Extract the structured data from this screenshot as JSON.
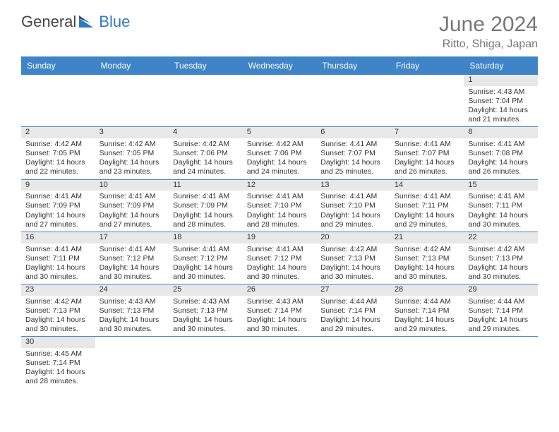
{
  "logo": {
    "text1": "General",
    "text2": "Blue"
  },
  "title": {
    "month": "June 2024",
    "location": "Ritto, Shiga, Japan"
  },
  "colors": {
    "header_bg": "#3e84c6",
    "header_text": "#ffffff",
    "rule": "#3e84c6",
    "daynum_bg": "#e8e8e8",
    "text": "#333333",
    "title_text": "#777777",
    "logo_blue": "#3078c0"
  },
  "days_of_week": [
    "Sunday",
    "Monday",
    "Tuesday",
    "Wednesday",
    "Thursday",
    "Friday",
    "Saturday"
  ],
  "cells": [
    {
      "n": "",
      "sr": "",
      "ss": "",
      "dl": ""
    },
    {
      "n": "",
      "sr": "",
      "ss": "",
      "dl": ""
    },
    {
      "n": "",
      "sr": "",
      "ss": "",
      "dl": ""
    },
    {
      "n": "",
      "sr": "",
      "ss": "",
      "dl": ""
    },
    {
      "n": "",
      "sr": "",
      "ss": "",
      "dl": ""
    },
    {
      "n": "",
      "sr": "",
      "ss": "",
      "dl": ""
    },
    {
      "n": "1",
      "sr": "Sunrise: 4:43 AM",
      "ss": "Sunset: 7:04 PM",
      "dl": "Daylight: 14 hours and 21 minutes."
    },
    {
      "n": "2",
      "sr": "Sunrise: 4:42 AM",
      "ss": "Sunset: 7:05 PM",
      "dl": "Daylight: 14 hours and 22 minutes."
    },
    {
      "n": "3",
      "sr": "Sunrise: 4:42 AM",
      "ss": "Sunset: 7:05 PM",
      "dl": "Daylight: 14 hours and 23 minutes."
    },
    {
      "n": "4",
      "sr": "Sunrise: 4:42 AM",
      "ss": "Sunset: 7:06 PM",
      "dl": "Daylight: 14 hours and 24 minutes."
    },
    {
      "n": "5",
      "sr": "Sunrise: 4:42 AM",
      "ss": "Sunset: 7:06 PM",
      "dl": "Daylight: 14 hours and 24 minutes."
    },
    {
      "n": "6",
      "sr": "Sunrise: 4:41 AM",
      "ss": "Sunset: 7:07 PM",
      "dl": "Daylight: 14 hours and 25 minutes."
    },
    {
      "n": "7",
      "sr": "Sunrise: 4:41 AM",
      "ss": "Sunset: 7:07 PM",
      "dl": "Daylight: 14 hours and 26 minutes."
    },
    {
      "n": "8",
      "sr": "Sunrise: 4:41 AM",
      "ss": "Sunset: 7:08 PM",
      "dl": "Daylight: 14 hours and 26 minutes."
    },
    {
      "n": "9",
      "sr": "Sunrise: 4:41 AM",
      "ss": "Sunset: 7:09 PM",
      "dl": "Daylight: 14 hours and 27 minutes."
    },
    {
      "n": "10",
      "sr": "Sunrise: 4:41 AM",
      "ss": "Sunset: 7:09 PM",
      "dl": "Daylight: 14 hours and 27 minutes."
    },
    {
      "n": "11",
      "sr": "Sunrise: 4:41 AM",
      "ss": "Sunset: 7:09 PM",
      "dl": "Daylight: 14 hours and 28 minutes."
    },
    {
      "n": "12",
      "sr": "Sunrise: 4:41 AM",
      "ss": "Sunset: 7:10 PM",
      "dl": "Daylight: 14 hours and 28 minutes."
    },
    {
      "n": "13",
      "sr": "Sunrise: 4:41 AM",
      "ss": "Sunset: 7:10 PM",
      "dl": "Daylight: 14 hours and 29 minutes."
    },
    {
      "n": "14",
      "sr": "Sunrise: 4:41 AM",
      "ss": "Sunset: 7:11 PM",
      "dl": "Daylight: 14 hours and 29 minutes."
    },
    {
      "n": "15",
      "sr": "Sunrise: 4:41 AM",
      "ss": "Sunset: 7:11 PM",
      "dl": "Daylight: 14 hours and 30 minutes."
    },
    {
      "n": "16",
      "sr": "Sunrise: 4:41 AM",
      "ss": "Sunset: 7:11 PM",
      "dl": "Daylight: 14 hours and 30 minutes."
    },
    {
      "n": "17",
      "sr": "Sunrise: 4:41 AM",
      "ss": "Sunset: 7:12 PM",
      "dl": "Daylight: 14 hours and 30 minutes."
    },
    {
      "n": "18",
      "sr": "Sunrise: 4:41 AM",
      "ss": "Sunset: 7:12 PM",
      "dl": "Daylight: 14 hours and 30 minutes."
    },
    {
      "n": "19",
      "sr": "Sunrise: 4:41 AM",
      "ss": "Sunset: 7:12 PM",
      "dl": "Daylight: 14 hours and 30 minutes."
    },
    {
      "n": "20",
      "sr": "Sunrise: 4:42 AM",
      "ss": "Sunset: 7:13 PM",
      "dl": "Daylight: 14 hours and 30 minutes."
    },
    {
      "n": "21",
      "sr": "Sunrise: 4:42 AM",
      "ss": "Sunset: 7:13 PM",
      "dl": "Daylight: 14 hours and 30 minutes."
    },
    {
      "n": "22",
      "sr": "Sunrise: 4:42 AM",
      "ss": "Sunset: 7:13 PM",
      "dl": "Daylight: 14 hours and 30 minutes."
    },
    {
      "n": "23",
      "sr": "Sunrise: 4:42 AM",
      "ss": "Sunset: 7:13 PM",
      "dl": "Daylight: 14 hours and 30 minutes."
    },
    {
      "n": "24",
      "sr": "Sunrise: 4:43 AM",
      "ss": "Sunset: 7:13 PM",
      "dl": "Daylight: 14 hours and 30 minutes."
    },
    {
      "n": "25",
      "sr": "Sunrise: 4:43 AM",
      "ss": "Sunset: 7:13 PM",
      "dl": "Daylight: 14 hours and 30 minutes."
    },
    {
      "n": "26",
      "sr": "Sunrise: 4:43 AM",
      "ss": "Sunset: 7:14 PM",
      "dl": "Daylight: 14 hours and 30 minutes."
    },
    {
      "n": "27",
      "sr": "Sunrise: 4:44 AM",
      "ss": "Sunset: 7:14 PM",
      "dl": "Daylight: 14 hours and 29 minutes."
    },
    {
      "n": "28",
      "sr": "Sunrise: 4:44 AM",
      "ss": "Sunset: 7:14 PM",
      "dl": "Daylight: 14 hours and 29 minutes."
    },
    {
      "n": "29",
      "sr": "Sunrise: 4:44 AM",
      "ss": "Sunset: 7:14 PM",
      "dl": "Daylight: 14 hours and 29 minutes."
    },
    {
      "n": "30",
      "sr": "Sunrise: 4:45 AM",
      "ss": "Sunset: 7:14 PM",
      "dl": "Daylight: 14 hours and 28 minutes."
    },
    {
      "n": "",
      "sr": "",
      "ss": "",
      "dl": ""
    },
    {
      "n": "",
      "sr": "",
      "ss": "",
      "dl": ""
    },
    {
      "n": "",
      "sr": "",
      "ss": "",
      "dl": ""
    },
    {
      "n": "",
      "sr": "",
      "ss": "",
      "dl": ""
    },
    {
      "n": "",
      "sr": "",
      "ss": "",
      "dl": ""
    },
    {
      "n": "",
      "sr": "",
      "ss": "",
      "dl": ""
    }
  ]
}
